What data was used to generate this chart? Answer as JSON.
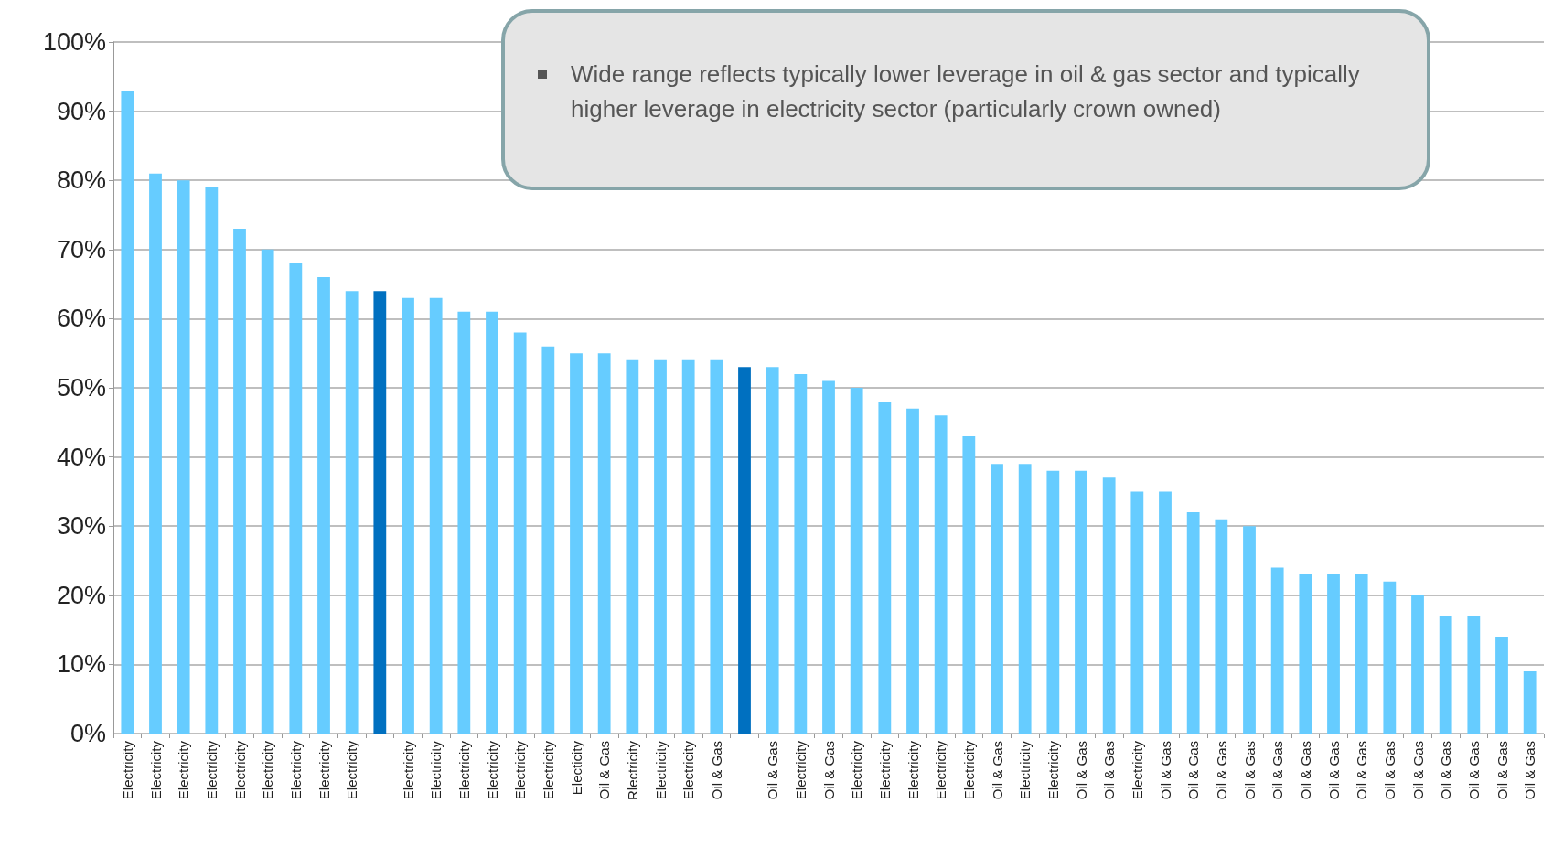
{
  "chart_data": {
    "type": "bar",
    "categories": [
      "Electricity",
      "Electricity",
      "Electricity",
      "Electricity",
      "Electricity",
      "Electricity",
      "Electricity",
      "Electricity",
      "Electricity",
      null,
      "Electricity",
      "Electricity",
      "Electricity",
      "Electricity",
      "Electricity",
      "Electricity",
      "Electicity",
      "Oil & Gas",
      "Rlectricity",
      "Electricity",
      "Electricity",
      "Oil & Gas",
      null,
      "Oil & Gas",
      "Electricity",
      "Oil & Gas",
      "Electricity",
      "Electricity",
      "Electricity",
      "Electricity",
      "Electricity",
      "Oil & Gas",
      "Electricity",
      "Electricity",
      "Oil & Gas",
      "Oil & Gas",
      "Electricity",
      "Oil & Gas",
      "Oil & Gas",
      "Oil & Gas",
      "Oil & Gas",
      "Oil & Gas",
      "Oil & Gas",
      "Oil & Gas",
      "Oil & Gas",
      "Oil & Gas",
      "Oil & Gas",
      "Oil & Gas",
      "Oil & Gas",
      "Oil & Gas",
      "Oil & Gas"
    ],
    "values": [
      93,
      81,
      80,
      79,
      73,
      70,
      68,
      66,
      64,
      64,
      63,
      63,
      61,
      61,
      58,
      56,
      55,
      55,
      54,
      54,
      54,
      54,
      53,
      53,
      52,
      51,
      50,
      48,
      47,
      46,
      43,
      39,
      39,
      38,
      38,
      37,
      35,
      35,
      32,
      31,
      30,
      24,
      23,
      23,
      23,
      22,
      20,
      17,
      17,
      14,
      9
    ],
    "colors": [
      "#66ccff",
      "#66ccff",
      "#66ccff",
      "#66ccff",
      "#66ccff",
      "#66ccff",
      "#66ccff",
      "#66ccff",
      "#66ccff",
      "#0070c0",
      "#66ccff",
      "#66ccff",
      "#66ccff",
      "#66ccff",
      "#66ccff",
      "#66ccff",
      "#66ccff",
      "#66ccff",
      "#66ccff",
      "#66ccff",
      "#66ccff",
      "#66ccff",
      "#0070c0",
      "#66ccff",
      "#66ccff",
      "#66ccff",
      "#66ccff",
      "#66ccff",
      "#66ccff",
      "#66ccff",
      "#66ccff",
      "#66ccff",
      "#66ccff",
      "#66ccff",
      "#66ccff",
      "#66ccff",
      "#66ccff",
      "#66ccff",
      "#66ccff",
      "#66ccff",
      "#66ccff",
      "#66ccff",
      "#66ccff",
      "#66ccff",
      "#66ccff",
      "#66ccff",
      "#66ccff",
      "#66ccff",
      "#66ccff",
      "#66ccff",
      "#66ccff"
    ],
    "ylim": [
      0,
      100
    ],
    "yticks": [
      {
        "value": 0,
        "label": "0%"
      },
      {
        "value": 10,
        "label": "10%"
      },
      {
        "value": 20,
        "label": "20%"
      },
      {
        "value": 30,
        "label": "30%"
      },
      {
        "value": 40,
        "label": "40%"
      },
      {
        "value": 50,
        "label": "50%"
      },
      {
        "value": 60,
        "label": "60%"
      },
      {
        "value": 70,
        "label": "70%"
      },
      {
        "value": 80,
        "label": "80%"
      },
      {
        "value": 90,
        "label": "90%"
      },
      {
        "value": 100,
        "label": "100%"
      }
    ],
    "grid": "y",
    "annotations": [
      "Wide range reflects typically lower leverage in oil & gas sector and typically higher leverage in electricity sector (particularly crown owned)"
    ]
  }
}
